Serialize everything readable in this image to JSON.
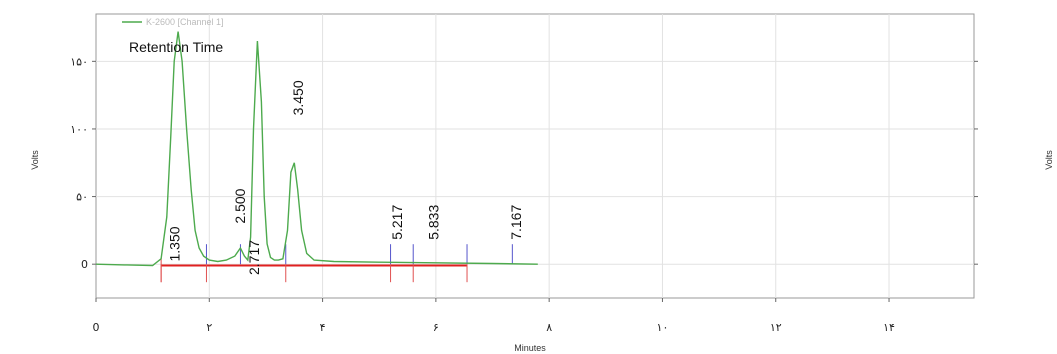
{
  "chart_data": {
    "type": "line",
    "ylabel": "Volts",
    "xlabel": "Minutes",
    "right_ylabel": "Volts",
    "xlim": [
      0,
      15.5
    ],
    "ylim": [
      -25,
      185
    ],
    "x_ticks": [
      {
        "value": 0,
        "label": "0"
      },
      {
        "value": 2,
        "label": "۲"
      },
      {
        "value": 4,
        "label": "۴"
      },
      {
        "value": 6,
        "label": "۶"
      },
      {
        "value": 8,
        "label": "۸"
      },
      {
        "value": 10,
        "label": "۱۰"
      },
      {
        "value": 12,
        "label": "۱۲"
      },
      {
        "value": 14,
        "label": "۱۴"
      }
    ],
    "y_ticks": [
      {
        "value": 0,
        "label": "0"
      },
      {
        "value": 50,
        "label": "۵۰"
      },
      {
        "value": 100,
        "label": "۱۰۰"
      },
      {
        "value": 150,
        "label": "۱۵۰"
      }
    ],
    "grid": true,
    "series": [
      {
        "name": "K-2600 [Channel 1]",
        "color": "#4daa4d",
        "x": [
          0,
          0.5,
          1.0,
          1.15,
          1.25,
          1.32,
          1.38,
          1.45,
          1.52,
          1.6,
          1.68,
          1.75,
          1.82,
          1.9,
          2.0,
          2.15,
          2.3,
          2.45,
          2.55,
          2.62,
          2.68,
          2.73,
          2.78,
          2.85,
          2.92,
          2.97,
          3.02,
          3.08,
          3.15,
          3.22,
          3.3,
          3.38,
          3.44,
          3.5,
          3.56,
          3.63,
          3.72,
          3.85,
          4.2,
          5.0,
          6.0,
          7.0,
          7.8
        ],
        "values": [
          0,
          -0.5,
          -1,
          4,
          35,
          95,
          150,
          172,
          150,
          100,
          55,
          25,
          12,
          6,
          3,
          2,
          3,
          6,
          12,
          6,
          3,
          20,
          100,
          165,
          120,
          50,
          15,
          5,
          3,
          3,
          4,
          25,
          68,
          75,
          55,
          25,
          8,
          3,
          2,
          1.5,
          1,
          0.5,
          0
        ]
      }
    ],
    "baseline": {
      "color": "#e02020",
      "x": [
        1.15,
        6.55
      ],
      "values": [
        -1,
        -1
      ]
    },
    "event_markers": [
      {
        "x": 1.15,
        "color": "#e05050",
        "side": "below"
      },
      {
        "x": 1.95,
        "color": "#5555cc",
        "side": "above"
      },
      {
        "x": 2.55,
        "color": "#5555cc",
        "side": "above"
      },
      {
        "x": 3.35,
        "color": "#5555cc",
        "side": "above"
      },
      {
        "x": 5.2,
        "color": "#5555cc",
        "side": "above"
      },
      {
        "x": 5.6,
        "color": "#5555cc",
        "side": "above"
      },
      {
        "x": 6.55,
        "color": "#5555cc",
        "side": "above"
      },
      {
        "x": 7.35,
        "color": "#5555cc",
        "side": "above"
      },
      {
        "x": 1.15,
        "color": "#e05050",
        "side": "below_short"
      },
      {
        "x": 1.95,
        "color": "#e05050",
        "side": "below_short"
      },
      {
        "x": 3.35,
        "color": "#e05050",
        "side": "below_short"
      },
      {
        "x": 5.2,
        "color": "#e05050",
        "side": "below_short"
      },
      {
        "x": 5.6,
        "color": "#e05050",
        "side": "below_short"
      },
      {
        "x": 6.55,
        "color": "#e05050",
        "side": "below_short"
      }
    ],
    "peak_labels": [
      {
        "text": "1.350",
        "x": 1.47,
        "y": 2
      },
      {
        "text": "2.500",
        "x": 2.63,
        "y": 30
      },
      {
        "text": "2.717",
        "x": 2.88,
        "y": -8
      },
      {
        "text": "3.450",
        "x": 3.65,
        "y": 110
      },
      {
        "text": "5.217",
        "x": 5.4,
        "y": 18
      },
      {
        "text": "5.833",
        "x": 6.05,
        "y": 18
      },
      {
        "text": "7.167",
        "x": 7.5,
        "y": 18
      }
    ],
    "annotation": "Retention Time",
    "legend": "top-left"
  }
}
